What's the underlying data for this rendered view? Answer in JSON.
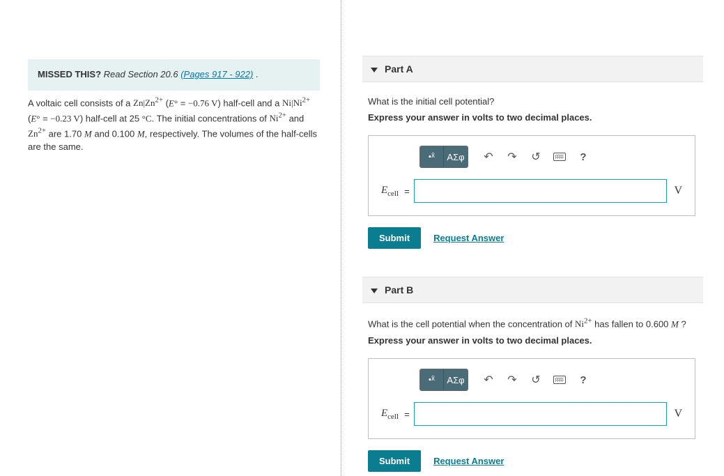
{
  "left": {
    "hint_label": "MISSED THIS?",
    "hint_text": " Read Section 20.6 ",
    "hint_link": "(Pages 917 - 922)",
    "hint_tail": " .",
    "problem_pre": "A voltaic cell consists of a ",
    "zn_couple": "Zn|Zn",
    "sup2p": "2+",
    "e_open": " (",
    "e_sym": "E",
    "deg": "°",
    "eq": " = ",
    "zn_val": "−0.76 V",
    "close_half": ") half-cell and a ",
    "ni_couple": "Ni|Ni",
    "ni_val": "−0.23 V",
    "close_half2": ") half-cell at 25 ",
    "degC": "°C",
    "period": ". The initial concentrations of ",
    "ni2": "Ni",
    "and": " and ",
    "zn2": "Zn",
    "conc_tail": " are 1.70 ",
    "M": "M",
    "conc_mid": " and 0.100 ",
    "resp": ", respectively. The volumes of the half-cells are the same."
  },
  "partA": {
    "title": "Part A",
    "question": "What is the initial cell potential?",
    "instruction": "Express your answer in volts to two decimal places.",
    "var": "E",
    "varsub": "cell",
    "unit": "V",
    "submit": "Submit",
    "request": "Request Answer"
  },
  "partB": {
    "title": "Part B",
    "q_pre": "What is the cell potential when the concentration of ",
    "ni": "Ni",
    "sup": "2+",
    "q_post": " has fallen to 0.600 ",
    "M": "M",
    "q_end": " ?",
    "instruction": "Express your answer in volts to two decimal places.",
    "var": "E",
    "varsub": "cell",
    "unit": "V",
    "submit": "Submit",
    "request": "Request Answer"
  },
  "toolbar": {
    "templates_label": "∎√",
    "greek_label": "ΑΣφ",
    "help": "?"
  },
  "colors": {
    "teal": "#0b7d90",
    "tb_bg": "#4a6b78",
    "hint_bg": "#e6f2f2"
  }
}
